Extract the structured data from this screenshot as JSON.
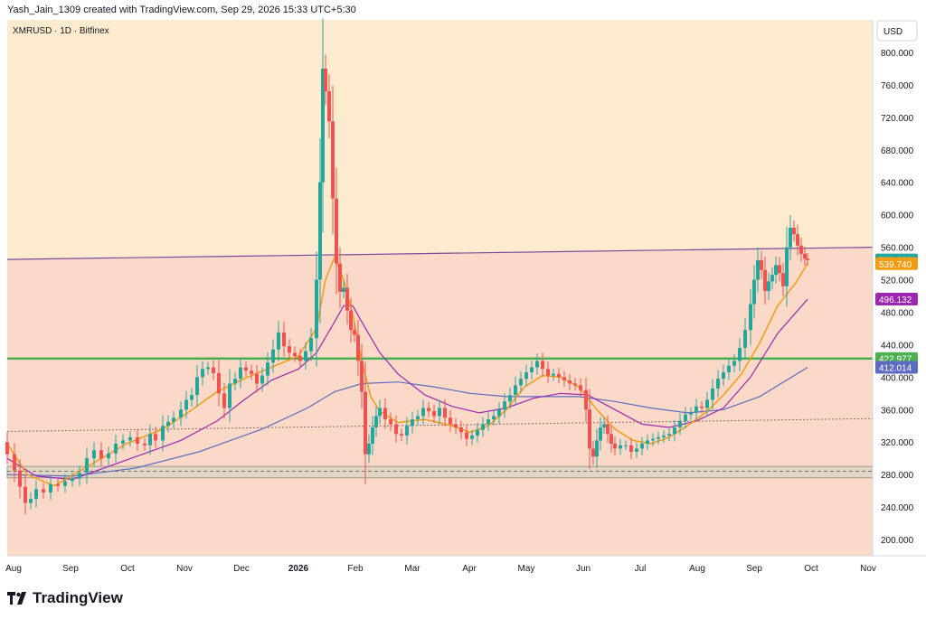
{
  "header": {
    "credit": "Yash_Jain_1309 created with TradingView.com, Sep 29, 2026 15:33 UTC+5:30"
  },
  "symbol": {
    "label": "XMRUSD · 1D · Bitfinex"
  },
  "currency": "USD",
  "logo": {
    "text": "TradingView"
  },
  "colors": {
    "bg_upper": "#fdebd0",
    "bg_lower": "#fbd9c8",
    "candle_up": "#26a69a",
    "candle_down": "#ef5350",
    "ema_fast": "#f39c12",
    "ema_mid": "#9c27b0",
    "ema_slow": "#5c6bc0",
    "support_line": "#4caf50",
    "trend_line": "#7b4a9e",
    "zone_fill": "#d8d3c5"
  },
  "chart_data": {
    "type": "candlestick",
    "ylim": [
      180,
      840
    ],
    "y_ticks": [
      "800.000",
      "760.000",
      "720.000",
      "680.000",
      "640.000",
      "600.000",
      "560.000",
      "520.000",
      "480.000",
      "440.000",
      "400.000",
      "360.000",
      "320.000",
      "280.000",
      "240.000",
      "200.000"
    ],
    "x_labels": [
      "Aug",
      "Sep",
      "Oct",
      "Nov",
      "Dec",
      "2026",
      "Feb",
      "Mar",
      "Apr",
      "May",
      "Jun",
      "Jul",
      "Aug",
      "Sep",
      "Oct",
      "Nov"
    ],
    "price_badges": [
      {
        "value": "544.360",
        "color": "#26a69a",
        "y": 544.36
      },
      {
        "value": "539.740",
        "color": "#f39c12",
        "y": 539.74
      },
      {
        "value": "496.132",
        "color": "#9c27b0",
        "y": 496.132
      },
      {
        "value": "422.977",
        "color": "#4caf50",
        "y": 422.977
      },
      {
        "value": "412.014",
        "color": "#5c6bc0",
        "y": 412.014
      }
    ],
    "closes": [
      [
        0,
        320
      ],
      [
        8,
        305
      ],
      [
        16,
        285
      ],
      [
        22,
        265
      ],
      [
        28,
        245
      ],
      [
        34,
        250
      ],
      [
        40,
        262
      ],
      [
        48,
        258
      ],
      [
        56,
        268
      ],
      [
        64,
        266
      ],
      [
        72,
        272
      ],
      [
        80,
        275
      ],
      [
        88,
        282
      ],
      [
        96,
        300
      ],
      [
        104,
        310
      ],
      [
        112,
        300
      ],
      [
        120,
        306
      ],
      [
        128,
        318
      ],
      [
        136,
        322
      ],
      [
        144,
        326
      ],
      [
        152,
        318
      ],
      [
        160,
        316
      ],
      [
        166,
        330
      ],
      [
        172,
        322
      ],
      [
        180,
        340
      ],
      [
        186,
        345
      ],
      [
        192,
        350
      ],
      [
        200,
        360
      ],
      [
        206,
        372
      ],
      [
        212,
        378
      ],
      [
        218,
        400
      ],
      [
        224,
        410
      ],
      [
        230,
        412
      ],
      [
        236,
        405
      ],
      [
        242,
        380
      ],
      [
        248,
        362
      ],
      [
        254,
        392
      ],
      [
        260,
        398
      ],
      [
        266,
        412
      ],
      [
        272,
        408
      ],
      [
        278,
        404
      ],
      [
        284,
        392
      ],
      [
        290,
        402
      ],
      [
        296,
        418
      ],
      [
        302,
        434
      ],
      [
        308,
        455
      ],
      [
        314,
        438
      ],
      [
        320,
        430
      ],
      [
        326,
        426
      ],
      [
        332,
        420
      ],
      [
        338,
        432
      ],
      [
        344,
        448
      ],
      [
        350,
        520
      ],
      [
        354,
        640
      ],
      [
        357,
        780
      ],
      [
        360,
        752
      ],
      [
        364,
        715
      ],
      [
        368,
        620
      ],
      [
        372,
        540
      ],
      [
        376,
        505
      ],
      [
        380,
        510
      ],
      [
        384,
        482
      ],
      [
        388,
        458
      ],
      [
        392,
        452
      ],
      [
        396,
        420
      ],
      [
        400,
        382
      ],
      [
        404,
        305
      ],
      [
        408,
        318
      ],
      [
        412,
        338
      ],
      [
        416,
        352
      ],
      [
        420,
        362
      ],
      [
        426,
        348
      ],
      [
        432,
        342
      ],
      [
        438,
        330
      ],
      [
        444,
        328
      ],
      [
        450,
        340
      ],
      [
        456,
        348
      ],
      [
        462,
        352
      ],
      [
        468,
        362
      ],
      [
        474,
        358
      ],
      [
        480,
        352
      ],
      [
        486,
        362
      ],
      [
        492,
        350
      ],
      [
        498,
        342
      ],
      [
        504,
        338
      ],
      [
        510,
        332
      ],
      [
        516,
        324
      ],
      [
        522,
        328
      ],
      [
        528,
        335
      ],
      [
        534,
        342
      ],
      [
        540,
        348
      ],
      [
        546,
        352
      ],
      [
        552,
        360
      ],
      [
        558,
        370
      ],
      [
        564,
        378
      ],
      [
        570,
        390
      ],
      [
        576,
        398
      ],
      [
        582,
        406
      ],
      [
        588,
        412
      ],
      [
        594,
        420
      ],
      [
        600,
        410
      ],
      [
        606,
        402
      ],
      [
        612,
        404
      ],
      [
        618,
        400
      ],
      [
        624,
        396
      ],
      [
        630,
        392
      ],
      [
        636,
        390
      ],
      [
        642,
        384
      ],
      [
        648,
        360
      ],
      [
        652,
        312
      ],
      [
        656,
        302
      ],
      [
        660,
        322
      ],
      [
        664,
        338
      ],
      [
        668,
        342
      ],
      [
        672,
        330
      ],
      [
        676,
        318
      ],
      [
        680,
        312
      ],
      [
        686,
        316
      ],
      [
        692,
        316
      ],
      [
        698,
        308
      ],
      [
        704,
        312
      ],
      [
        710,
        318
      ],
      [
        716,
        322
      ],
      [
        722,
        324
      ],
      [
        728,
        326
      ],
      [
        734,
        328
      ],
      [
        740,
        330
      ],
      [
        746,
        338
      ],
      [
        752,
        346
      ],
      [
        758,
        354
      ],
      [
        764,
        356
      ],
      [
        770,
        364
      ],
      [
        776,
        362
      ],
      [
        782,
        372
      ],
      [
        788,
        386
      ],
      [
        794,
        398
      ],
      [
        800,
        406
      ],
      [
        806,
        414
      ],
      [
        812,
        420
      ],
      [
        818,
        436
      ],
      [
        824,
        458
      ],
      [
        830,
        490
      ],
      [
        834,
        520
      ],
      [
        838,
        544
      ],
      [
        842,
        532
      ],
      [
        846,
        506
      ],
      [
        850,
        518
      ],
      [
        854,
        526
      ],
      [
        858,
        538
      ],
      [
        862,
        528
      ],
      [
        866,
        512
      ],
      [
        870,
        560
      ],
      [
        874,
        584
      ],
      [
        878,
        576
      ],
      [
        882,
        562
      ],
      [
        886,
        552
      ],
      [
        890,
        546
      ],
      [
        893,
        544
      ]
    ],
    "ema_fast": [
      [
        8,
        318
      ],
      [
        30,
        280
      ],
      [
        60,
        266
      ],
      [
        100,
        292
      ],
      [
        140,
        318
      ],
      [
        180,
        336
      ],
      [
        210,
        358
      ],
      [
        240,
        382
      ],
      [
        270,
        398
      ],
      [
        300,
        412
      ],
      [
        330,
        426
      ],
      [
        350,
        460
      ],
      [
        360,
        520
      ],
      [
        370,
        548
      ],
      [
        380,
        520
      ],
      [
        390,
        478
      ],
      [
        400,
        420
      ],
      [
        410,
        376
      ],
      [
        420,
        358
      ],
      [
        440,
        344
      ],
      [
        470,
        348
      ],
      [
        500,
        340
      ],
      [
        520,
        332
      ],
      [
        540,
        340
      ],
      [
        560,
        360
      ],
      [
        580,
        388
      ],
      [
        600,
        402
      ],
      [
        620,
        400
      ],
      [
        640,
        388
      ],
      [
        660,
        360
      ],
      [
        680,
        336
      ],
      [
        700,
        322
      ],
      [
        720,
        318
      ],
      [
        740,
        326
      ],
      [
        760,
        340
      ],
      [
        780,
        356
      ],
      [
        800,
        378
      ],
      [
        820,
        404
      ],
      [
        840,
        442
      ],
      [
        860,
        488
      ],
      [
        880,
        516
      ],
      [
        893,
        540
      ]
    ],
    "ema_mid": [
      [
        8,
        300
      ],
      [
        40,
        278
      ],
      [
        80,
        274
      ],
      [
        120,
        290
      ],
      [
        160,
        306
      ],
      [
        200,
        322
      ],
      [
        240,
        346
      ],
      [
        270,
        372
      ],
      [
        300,
        396
      ],
      [
        330,
        410
      ],
      [
        350,
        430
      ],
      [
        370,
        468
      ],
      [
        380,
        488
      ],
      [
        390,
        488
      ],
      [
        400,
        468
      ],
      [
        420,
        430
      ],
      [
        440,
        404
      ],
      [
        470,
        378
      ],
      [
        500,
        364
      ],
      [
        530,
        356
      ],
      [
        560,
        362
      ],
      [
        590,
        374
      ],
      [
        620,
        380
      ],
      [
        650,
        378
      ],
      [
        680,
        360
      ],
      [
        710,
        342
      ],
      [
        740,
        338
      ],
      [
        770,
        346
      ],
      [
        800,
        362
      ],
      [
        830,
        400
      ],
      [
        860,
        454
      ],
      [
        893,
        496
      ]
    ],
    "ema_slow": [
      [
        8,
        280
      ],
      [
        80,
        278
      ],
      [
        150,
        288
      ],
      [
        220,
        308
      ],
      [
        290,
        336
      ],
      [
        340,
        362
      ],
      [
        370,
        382
      ],
      [
        400,
        392
      ],
      [
        440,
        394
      ],
      [
        480,
        388
      ],
      [
        520,
        380
      ],
      [
        560,
        376
      ],
      [
        600,
        376
      ],
      [
        640,
        376
      ],
      [
        680,
        370
      ],
      [
        720,
        362
      ],
      [
        760,
        356
      ],
      [
        800,
        360
      ],
      [
        840,
        376
      ],
      [
        893,
        412
      ]
    ],
    "trend_line": [
      [
        8,
        545
      ],
      [
        965,
        560
      ]
    ],
    "support_level": 422.977,
    "dotted_trend": [
      [
        8,
        333
      ],
      [
        965,
        349
      ]
    ],
    "zone": {
      "low": 276,
      "high": 290,
      "mid": 284
    }
  }
}
